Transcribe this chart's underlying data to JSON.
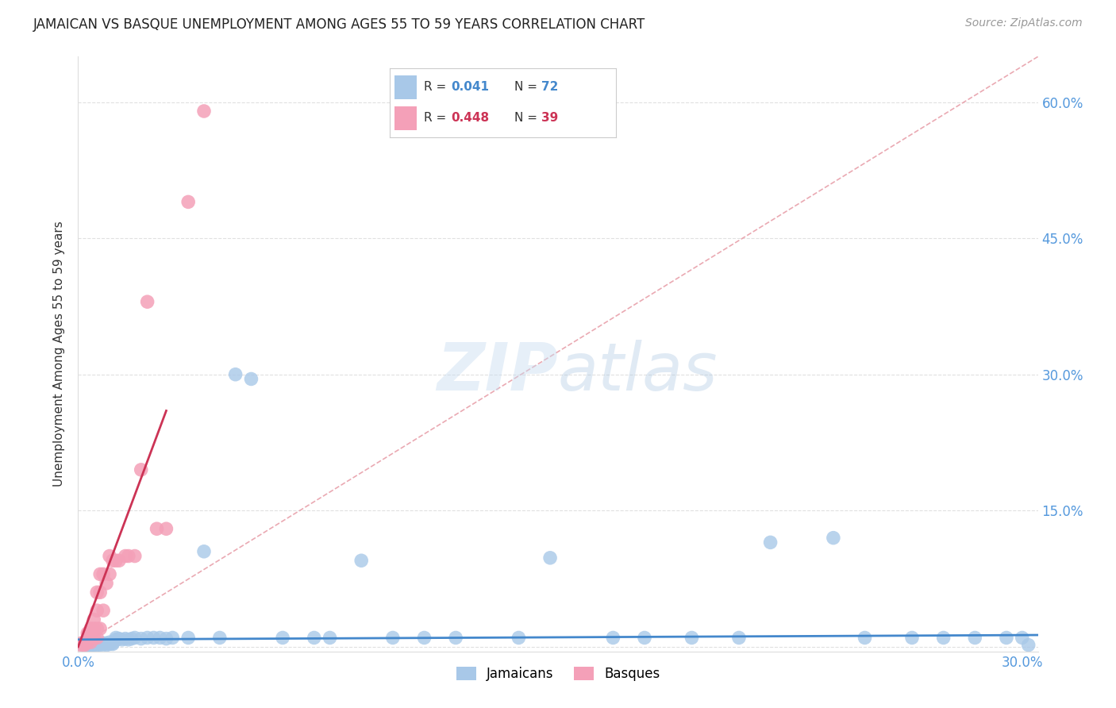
{
  "title": "JAMAICAN VS BASQUE UNEMPLOYMENT AMONG AGES 55 TO 59 YEARS CORRELATION CHART",
  "source": "Source: ZipAtlas.com",
  "ylabel": "Unemployment Among Ages 55 to 59 years",
  "xlim": [
    0.0,
    0.305
  ],
  "ylim": [
    -0.005,
    0.65
  ],
  "jamaicans_color": "#A8C8E8",
  "basques_color": "#F4A0B8",
  "trendline_jamaicans_color": "#4488CC",
  "trendline_basques_color": "#CC3355",
  "diag_color": "#E8A0AA",
  "legend_R_color": "#4488CC",
  "legend_R2_color": "#CC3355",
  "axis_color": "#5599DD",
  "grid_color": "#CCCCCC",
  "watermark": "ZIPatlas",
  "title_fontsize": 12,
  "tick_fontsize": 12,
  "ylabel_fontsize": 11,
  "jamaicans_x": [
    0.001,
    0.002,
    0.002,
    0.003,
    0.003,
    0.003,
    0.004,
    0.004,
    0.004,
    0.004,
    0.005,
    0.005,
    0.005,
    0.005,
    0.005,
    0.006,
    0.006,
    0.006,
    0.006,
    0.007,
    0.007,
    0.007,
    0.008,
    0.008,
    0.008,
    0.009,
    0.009,
    0.01,
    0.01,
    0.011,
    0.011,
    0.012,
    0.012,
    0.013,
    0.014,
    0.015,
    0.016,
    0.017,
    0.018,
    0.02,
    0.022,
    0.024,
    0.026,
    0.028,
    0.03,
    0.035,
    0.04,
    0.045,
    0.05,
    0.055,
    0.065,
    0.075,
    0.08,
    0.09,
    0.1,
    0.11,
    0.12,
    0.14,
    0.15,
    0.17,
    0.18,
    0.195,
    0.21,
    0.22,
    0.24,
    0.25,
    0.265,
    0.275,
    0.285,
    0.295,
    0.3,
    0.302
  ],
  "jamaicans_y": [
    0.003,
    0.004,
    0.002,
    0.003,
    0.004,
    0.002,
    0.003,
    0.004,
    0.002,
    0.001,
    0.003,
    0.004,
    0.003,
    0.002,
    0.005,
    0.004,
    0.003,
    0.002,
    0.004,
    0.003,
    0.004,
    0.002,
    0.003,
    0.004,
    0.003,
    0.004,
    0.002,
    0.003,
    0.005,
    0.004,
    0.003,
    0.01,
    0.008,
    0.009,
    0.008,
    0.009,
    0.008,
    0.009,
    0.01,
    0.009,
    0.01,
    0.01,
    0.01,
    0.009,
    0.01,
    0.01,
    0.105,
    0.01,
    0.3,
    0.295,
    0.01,
    0.01,
    0.01,
    0.095,
    0.01,
    0.01,
    0.01,
    0.01,
    0.098,
    0.01,
    0.01,
    0.01,
    0.01,
    0.115,
    0.12,
    0.01,
    0.01,
    0.01,
    0.01,
    0.01,
    0.01,
    0.002
  ],
  "basques_x": [
    0.001,
    0.001,
    0.002,
    0.002,
    0.002,
    0.003,
    0.003,
    0.003,
    0.004,
    0.004,
    0.004,
    0.004,
    0.005,
    0.005,
    0.005,
    0.006,
    0.006,
    0.006,
    0.006,
    0.007,
    0.007,
    0.007,
    0.008,
    0.008,
    0.009,
    0.01,
    0.01,
    0.011,
    0.012,
    0.013,
    0.015,
    0.016,
    0.018,
    0.02,
    0.022,
    0.025,
    0.028,
    0.035,
    0.04
  ],
  "basques_y": [
    0.002,
    0.004,
    0.003,
    0.005,
    0.002,
    0.01,
    0.015,
    0.005,
    0.02,
    0.015,
    0.01,
    0.005,
    0.03,
    0.02,
    0.01,
    0.06,
    0.04,
    0.02,
    0.01,
    0.06,
    0.08,
    0.02,
    0.08,
    0.04,
    0.07,
    0.08,
    0.1,
    0.095,
    0.095,
    0.095,
    0.1,
    0.1,
    0.1,
    0.195,
    0.38,
    0.13,
    0.13,
    0.49,
    0.59
  ],
  "jam_trend_x": [
    0.0,
    0.305
  ],
  "jam_trend_y": [
    0.008,
    0.013
  ],
  "bas_trend_x": [
    0.0,
    0.028
  ],
  "bas_trend_y": [
    0.0,
    0.26
  ]
}
